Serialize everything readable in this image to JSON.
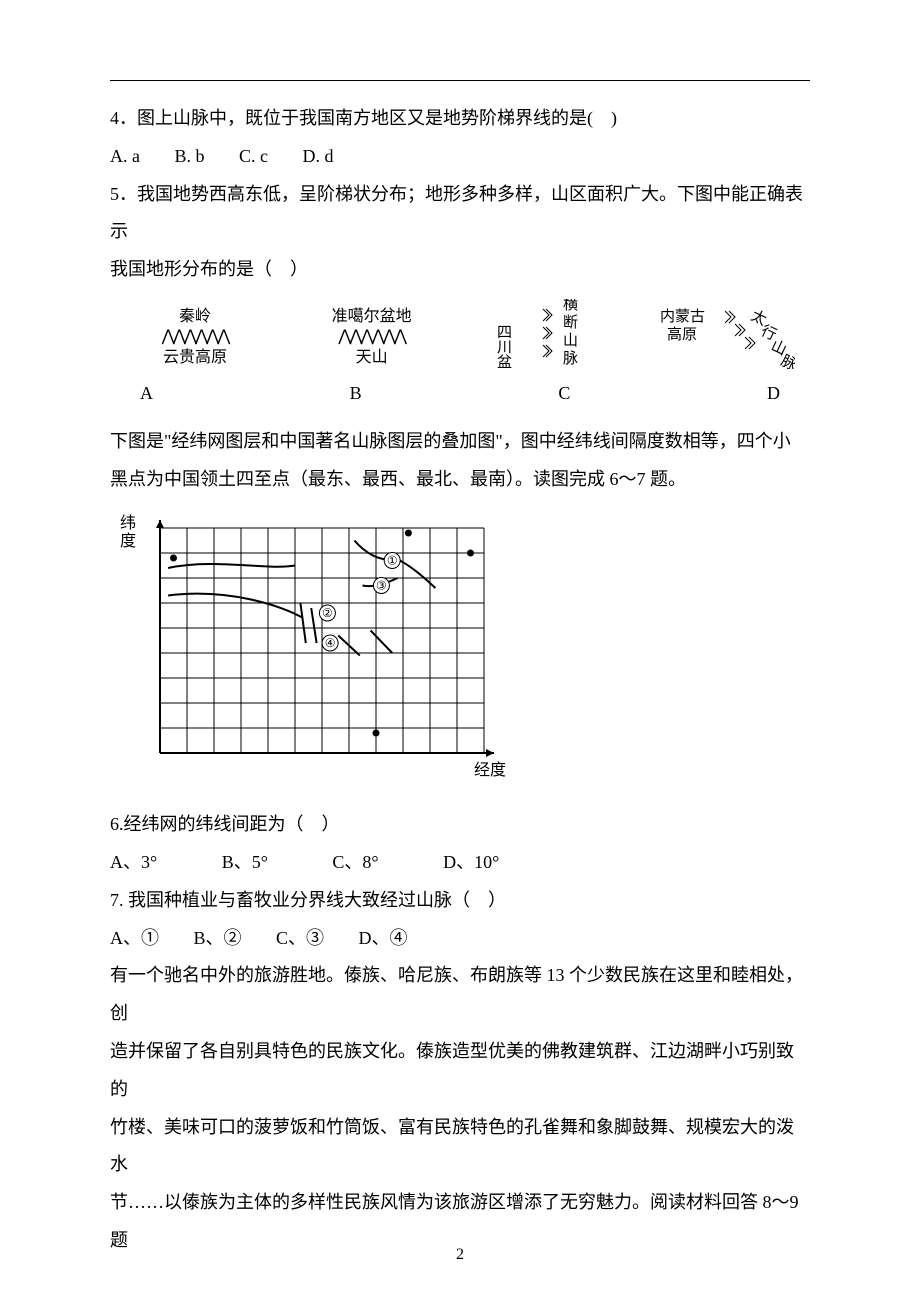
{
  "q4": {
    "text": "4．图上山脉中，既位于我国南方地区又是地势阶梯界线的是(　)",
    "A": "A. a",
    "B": "B. b",
    "C": "C. c",
    "D": "D. d"
  },
  "q5": {
    "text1": "5．我国地势西高东低，呈阶梯状分布；地形多种多样，山区面积广大。下图中能正确表示",
    "text2": "我国地形分布的是（　）",
    "panels": {
      "A": {
        "top": "秦岭",
        "bottom": "云贵高原",
        "mountain": "⋀⋀⋀⋀⋀⋀"
      },
      "B": {
        "top": "准噶尔盆地",
        "bottom": "天山",
        "mountain": "⋀⋀⋀⋀⋀⋀"
      },
      "C": {
        "left": "四川盆地",
        "right": "横断山脉"
      },
      "D": {
        "left": "内蒙古高原",
        "right": "太行山脉"
      },
      "labels": {
        "A": "A",
        "B": "B",
        "C": "C",
        "D": "D"
      }
    }
  },
  "intro67": {
    "line1": "下图是\"经纬网图层和中国著名山脉图层的叠加图\"，图中经纬线间隔度数相等，四个小",
    "line2": "黑点为中国领土四至点（最东、最西、最北、最南）。读图完成 6～7 题。"
  },
  "grid": {
    "ylabel": "纬度",
    "xlabel": "经度",
    "cols": 12,
    "rows": 9,
    "marks": {
      "1": "①",
      "2": "②",
      "3": "③",
      "4": "④"
    },
    "background": "#ffffff",
    "line_color": "#000000"
  },
  "q6": {
    "text": "6.经纬网的纬线间距为（　）",
    "A": "A、3°",
    "B": "B、5°",
    "C": "C、8°",
    "D": "D、10°"
  },
  "q7": {
    "text": "7. 我国种植业与畜牧业分界线大致经过山脉（　）",
    "A": "A、①",
    "B": "B、②",
    "C": "C、③",
    "D": "D、④"
  },
  "passage89": {
    "l1": "有一个驰名中外的旅游胜地。傣族、哈尼族、布朗族等 13 个少数民族在这里和睦相处，创",
    "l2": "造并保留了各自别具特色的民族文化。傣族造型优美的佛教建筑群、江边湖畔小巧别致的",
    "l3": "竹楼、美味可口的菠萝饭和竹筒饭、富有民族特色的孔雀舞和象脚鼓舞、规模宏大的泼水",
    "l4": "节……以傣族为主体的多样性民族风情为该旅游区增添了无穷魅力。阅读材料回答 8～9 题"
  },
  "pagenum": "2"
}
